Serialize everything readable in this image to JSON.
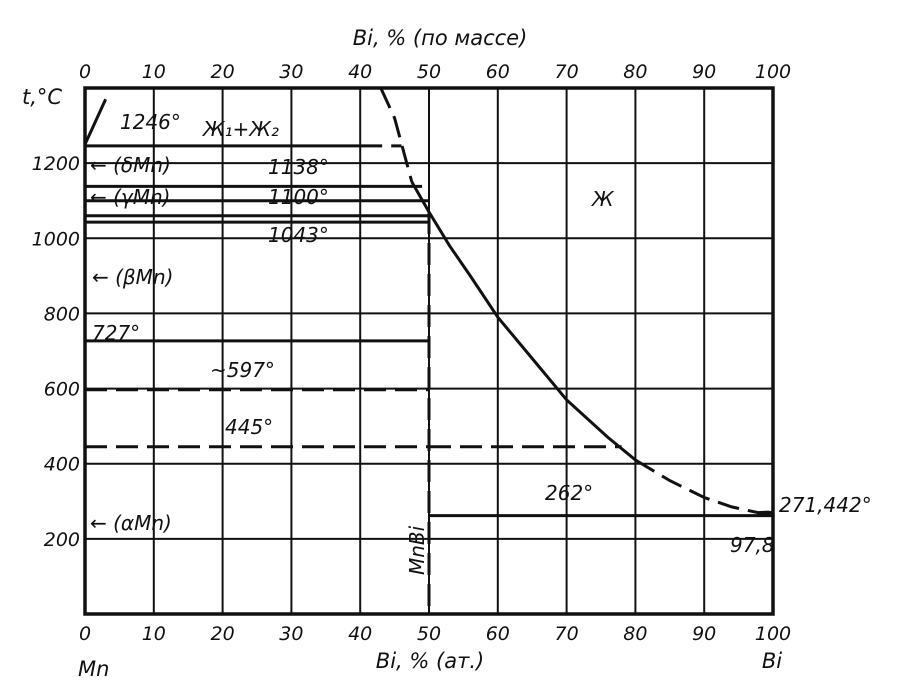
{
  "chart_data": {
    "type": "line",
    "title": "",
    "xlabel_bottom": "Bi, % (ат.)",
    "xlabel_top": "Bi, % (по массе)",
    "ylabel": "t,°C",
    "xlim": [
      0,
      100
    ],
    "ylim": [
      0,
      1400
    ],
    "grid": true,
    "x_ticks_bottom": [
      "0",
      "10",
      "20",
      "30",
      "40",
      "50",
      "60",
      "70",
      "80",
      "90",
      "100"
    ],
    "x_ticks_top": [
      "0",
      "10",
      "20",
      "30",
      "40",
      "50",
      "60",
      "70",
      "80",
      "90",
      "100"
    ],
    "y_ticks": [
      "200",
      "400",
      "600",
      "800",
      "1000",
      "1200"
    ],
    "end_labels": {
      "left": "Mn",
      "right": "Bi"
    },
    "liquidus_solid": [
      [
        47.5,
        1150
      ],
      [
        50,
        1070
      ],
      [
        53,
        980
      ],
      [
        56,
        900
      ],
      [
        60,
        790
      ],
      [
        65,
        680
      ],
      [
        70,
        570
      ],
      [
        76,
        470
      ],
      [
        80,
        410
      ]
    ],
    "liquidus_dashed": [
      [
        43,
        1400
      ],
      [
        45,
        1320
      ],
      [
        47.5,
        1150
      ]
    ],
    "liquidus_dashed_low": [
      [
        80,
        410
      ],
      [
        85,
        355
      ],
      [
        90,
        310
      ],
      [
        94,
        285
      ],
      [
        97.8,
        270
      ],
      [
        100,
        271.442
      ]
    ],
    "isotherms_solid": [
      {
        "t": 1246,
        "x_from": 0,
        "x_to": 40
      },
      {
        "t": 1138,
        "x_from": 0,
        "x_to": 49
      },
      {
        "t": 1100,
        "x_from": 0,
        "x_to": 50
      },
      {
        "t": 1060,
        "x_from": 0,
        "x_to": 50
      },
      {
        "t": 1043,
        "x_from": 0,
        "x_to": 50
      },
      {
        "t": 727,
        "x_from": 0,
        "x_to": 50
      },
      {
        "t": 262,
        "x_from": 50,
        "x_to": 100
      }
    ],
    "isotherms_dashed": [
      {
        "t": 1246,
        "x_from": 40,
        "x_to": 46
      },
      {
        "t": 597,
        "x_from": 0,
        "x_to": 50
      },
      {
        "t": 445,
        "x_from": 0,
        "x_to": 50
      },
      {
        "t": 445,
        "x_from": 50,
        "x_to": 78
      }
    ],
    "compound": {
      "name": "MnBi",
      "x": 50
    },
    "annotations": {
      "t1246": "1246°",
      "liquid_miscibility": "Ж₁+Ж₂",
      "t1138": "1138°",
      "t1100": "1100°",
      "t1043": "1043°",
      "t727": "727°",
      "t597": "~597°",
      "t445": "445°",
      "t262": "262°",
      "liquid": "Ж",
      "bi_melting": "271,442°",
      "eutectic_x": "97,8",
      "delta_mn": "← (δMn)",
      "gamma_mn": "← (γMn)",
      "beta_mn": "← (βMn)",
      "alpha_mn": "← (αMn)",
      "compound_label": "MnBi"
    }
  }
}
